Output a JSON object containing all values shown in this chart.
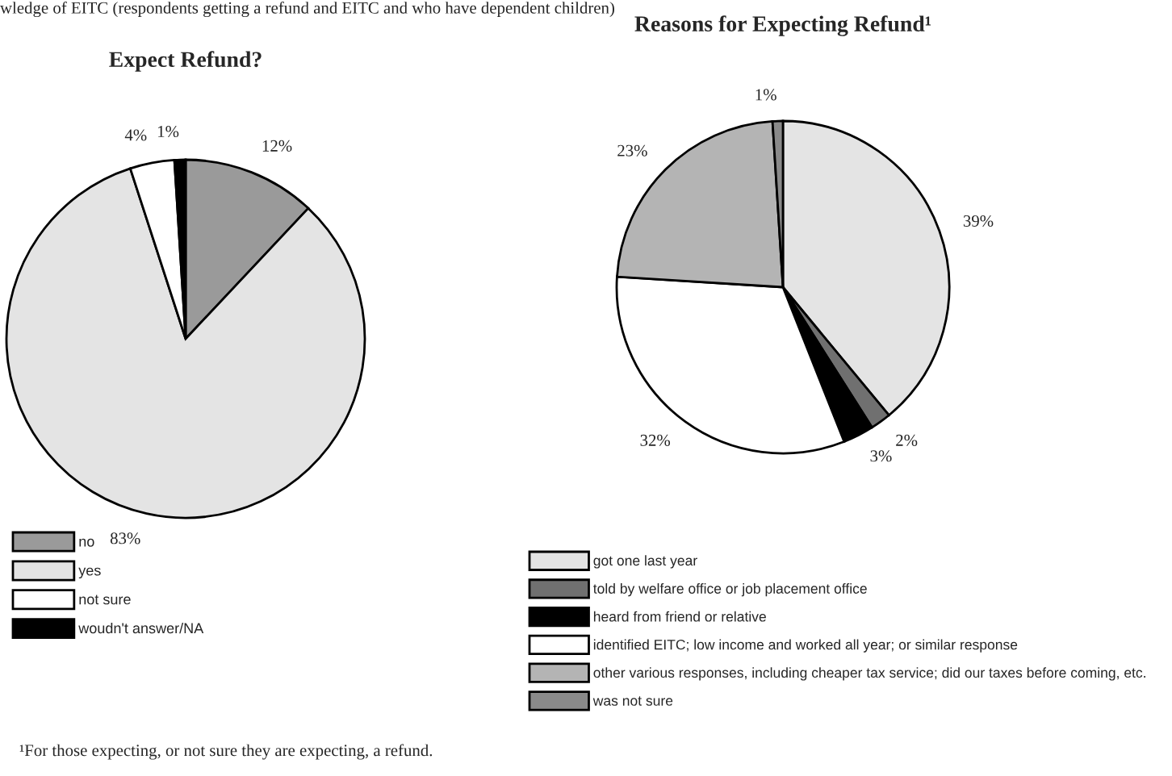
{
  "chart_data": [
    {
      "type": "pie",
      "title": "Expect Refund?",
      "categories": [
        "no",
        "yes",
        "not sure",
        "woudn't answer/NA"
      ],
      "values": [
        12,
        83,
        4,
        1
      ],
      "value_labels": [
        "12%",
        "83%",
        "4%",
        "1%"
      ],
      "colors": [
        "#9a9a9a",
        "#e4e4e4",
        "#ffffff",
        "#000000"
      ],
      "legend": "bottom",
      "annotations": [
        "wledge of EITC (respondents getting a refund and EITC and who have dependent children)",
        "¹For those expecting, or not sure they are expecting, a refund."
      ]
    },
    {
      "type": "pie",
      "title": "Reasons for Expecting Refund¹",
      "categories": [
        "got one last year",
        "told by welfare office or job placement office",
        "heard from friend or relative",
        "identified EITC; low income and worked all year; or similar response",
        "other various responses, including cheaper tax service; did our taxes before coming, etc.",
        "was not sure"
      ],
      "values": [
        39,
        2,
        3,
        32,
        23,
        1
      ],
      "value_labels": [
        "39%",
        "2%",
        "3%",
        "32%",
        "23%",
        "1%"
      ],
      "colors": [
        "#e4e4e4",
        "#707070",
        "#000000",
        "#ffffff",
        "#b4b4b4",
        "#8a8a8a"
      ],
      "legend": "bottom"
    }
  ]
}
